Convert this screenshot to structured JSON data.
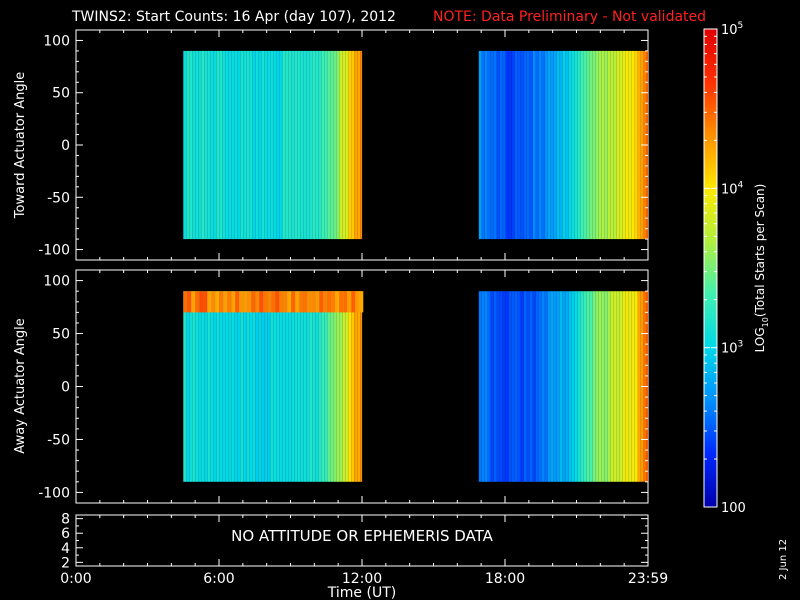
{
  "title": {
    "main": "TWINS2: Start Counts: 16 Apr (day 107), 2012",
    "note": "NOTE: Data Preliminary - Not validated",
    "note_color": "#ff2020"
  },
  "stamp": "2 Jun 12",
  "colors": {
    "background": "#000000",
    "axes": "#ffffff",
    "colormap": [
      "#0000aa",
      "#0028ff",
      "#0090ff",
      "#00d8e8",
      "#40f0b0",
      "#b0f040",
      "#ffe800",
      "#ff9000",
      "#ff3000",
      "#e00000"
    ]
  },
  "chart_data": [
    {
      "type": "heatmap",
      "panel": "top",
      "ylabel": "Toward Actuator Angle",
      "ylim": [
        -110,
        110
      ],
      "yticks": [
        "100",
        "50",
        "0",
        "-50",
        "-100"
      ],
      "ytick_values": [
        100,
        50,
        0,
        -50,
        -100
      ],
      "xlim": [
        0,
        24
      ],
      "data_blocks": [
        {
          "x_start": 4.5,
          "x_end": 12.0,
          "y_range": [
            -90,
            90
          ],
          "level_profile": [
            [
              4.5,
              3.15
            ],
            [
              6.0,
              3.1
            ],
            [
              8.0,
              3.05
            ],
            [
              10.0,
              3.2
            ],
            [
              10.8,
              3.5
            ],
            [
              11.3,
              3.9
            ],
            [
              11.7,
              4.25
            ],
            [
              12.0,
              4.4
            ]
          ]
        },
        {
          "x_start": 16.9,
          "x_end": 24.0,
          "y_range": [
            -90,
            90
          ],
          "level_profile": [
            [
              16.9,
              2.65
            ],
            [
              18.0,
              2.45
            ],
            [
              19.5,
              2.6
            ],
            [
              20.8,
              3.0
            ],
            [
              21.5,
              3.5
            ],
            [
              22.5,
              3.75
            ],
            [
              23.3,
              4.0
            ],
            [
              23.8,
              4.4
            ],
            [
              24.0,
              4.5
            ]
          ]
        }
      ]
    },
    {
      "type": "heatmap",
      "panel": "middle",
      "ylabel": "Away Actuator Angle",
      "ylim": [
        -110,
        110
      ],
      "yticks": [
        "100",
        "50",
        "0",
        "-50",
        "-100"
      ],
      "ytick_values": [
        100,
        50,
        0,
        -50,
        -100
      ],
      "xlim": [
        0,
        24
      ],
      "data_blocks": [
        {
          "x_start": 4.5,
          "x_end": 12.0,
          "y_range": [
            -90,
            90
          ],
          "level_profile": [
            [
              4.5,
              3.1
            ],
            [
              6.0,
              3.05
            ],
            [
              8.0,
              3.0
            ],
            [
              10.0,
              3.15
            ],
            [
              10.8,
              3.45
            ],
            [
              11.3,
              3.85
            ],
            [
              11.7,
              4.2
            ],
            [
              12.0,
              4.35
            ]
          ],
          "band": {
            "y_range": [
              70,
              90
            ],
            "level": 4.4
          }
        },
        {
          "x_start": 16.9,
          "x_end": 24.0,
          "y_range": [
            -90,
            90
          ],
          "level_profile": [
            [
              16.9,
              2.6
            ],
            [
              18.0,
              2.4
            ],
            [
              19.5,
              2.55
            ],
            [
              20.8,
              2.95
            ],
            [
              21.5,
              3.4
            ],
            [
              22.5,
              3.7
            ],
            [
              23.3,
              3.95
            ],
            [
              23.8,
              4.35
            ],
            [
              24.0,
              4.5
            ]
          ]
        }
      ]
    },
    {
      "type": "line",
      "panel": "bottom",
      "ylim": [
        1.5,
        8.5
      ],
      "yticks": [
        "8",
        "6",
        "4",
        "2"
      ],
      "ytick_values": [
        8,
        6,
        4,
        2
      ],
      "series": [],
      "annotation": "NO ATTITUDE OR EPHEMERIS DATA"
    }
  ],
  "x_axis": {
    "label": "Time (UT)",
    "tick_labels": [
      "0:00",
      "6:00",
      "12:00",
      "18:00",
      "23:59"
    ],
    "tick_values": [
      0,
      6,
      12,
      18,
      24
    ]
  },
  "colorbar": {
    "label": "LOG10(Total Starts per Scan)",
    "label_base": "LOG",
    "label_sub": "10",
    "label_rest": "(Total Starts per Scan)",
    "range_log": [
      2,
      5
    ],
    "tick_labels": [
      {
        "text": "100",
        "log": 2
      },
      {
        "text": "10",
        "sup": "3",
        "log": 3
      },
      {
        "text": "10",
        "sup": "4",
        "log": 4
      },
      {
        "text": "10",
        "sup": "5",
        "log": 5
      }
    ]
  }
}
